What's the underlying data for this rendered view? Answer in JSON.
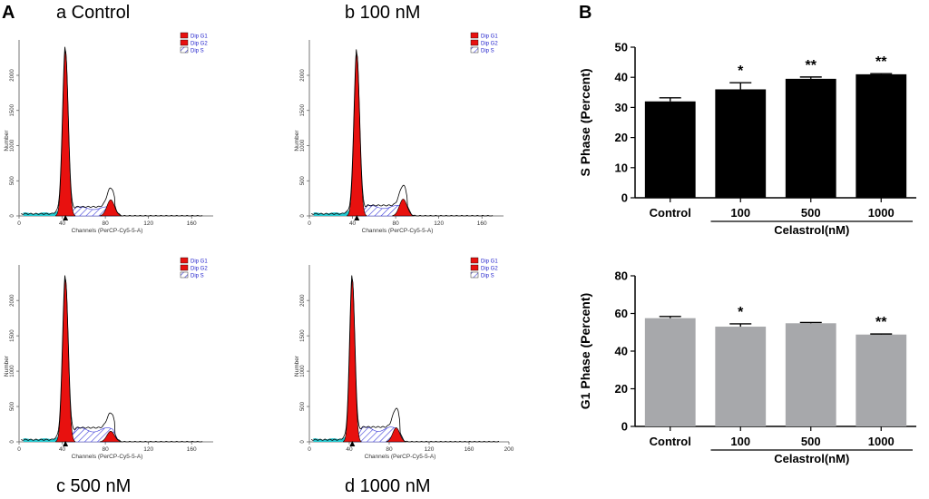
{
  "figure": {
    "panel_a_label": "A",
    "panel_b_label": "B"
  },
  "histogram_common": {
    "x_label": "Channels (PerCP-Cy5-5-A)",
    "y_label": "Number",
    "legend": [
      "Dip G1",
      "Dip G2",
      "Dip S"
    ],
    "colors": {
      "g1": "#e8110f",
      "g2": "#e8110f",
      "s": "#3a3ad8",
      "debris": "#25c8d0",
      "legend_text": "#2222cc"
    }
  },
  "chart_data": [
    {
      "type": "area",
      "panel": "a",
      "title": "a  Control",
      "xlabel": "Channels (PerCP-Cy5-5-A)",
      "ylabel": "Number",
      "x_ticks": [
        0,
        40,
        80,
        120,
        160
      ],
      "y_ticks": [
        0,
        500,
        1000,
        1500,
        2000
      ],
      "xlim": [
        0,
        180
      ],
      "ylim": [
        0,
        2400
      ],
      "legend": [
        "Dip G1",
        "Dip G2",
        "Dip S"
      ],
      "g1_peak": {
        "x": 43,
        "height": 2350
      },
      "g2_peak": {
        "x": 85,
        "height": 230
      },
      "s_phase_plateau": 130,
      "marker_x": 43
    },
    {
      "type": "area",
      "panel": "b",
      "title": "b  100 nM",
      "xlabel": "Channels (PerCP-Cy5-5-A)",
      "ylabel": "Number",
      "x_ticks": [
        0,
        40,
        80,
        120,
        160
      ],
      "y_ticks": [
        0,
        500,
        1000,
        1500,
        2000
      ],
      "xlim": [
        0,
        180
      ],
      "ylim": [
        0,
        2400
      ],
      "legend": [
        "Dip G1",
        "Dip G2",
        "Dip S"
      ],
      "g1_peak": {
        "x": 44,
        "height": 2300
      },
      "g2_peak": {
        "x": 87,
        "height": 240
      },
      "s_phase_plateau": 150,
      "marker_x": 44
    },
    {
      "type": "area",
      "panel": "c",
      "title": "c  500 nM",
      "xlabel": "Channels (PerCP-Cy5-5-A)",
      "ylabel": "Number",
      "x_ticks": [
        0,
        40,
        80,
        120,
        160
      ],
      "y_ticks": [
        0,
        500,
        1000,
        1500,
        2000
      ],
      "xlim": [
        0,
        180
      ],
      "ylim": [
        0,
        2400
      ],
      "legend": [
        "Dip G1",
        "Dip G2",
        "Dip S"
      ],
      "g1_peak": {
        "x": 43,
        "height": 2300
      },
      "g2_peak": {
        "x": 85,
        "height": 150
      },
      "s_phase_plateau": 200,
      "marker_x": 43
    },
    {
      "type": "area",
      "panel": "d",
      "title": "d  1000 nM",
      "xlabel": "Channels (PerCP-Cy5-5-A)",
      "ylabel": "Number",
      "x_ticks": [
        0,
        40,
        80,
        120,
        160,
        200
      ],
      "y_ticks": [
        0,
        500,
        1000,
        1500,
        2000
      ],
      "xlim": [
        0,
        200
      ],
      "ylim": [
        0,
        2400
      ],
      "legend": [
        "Dip G1",
        "Dip G2",
        "Dip S"
      ],
      "g1_peak": {
        "x": 43,
        "height": 2300
      },
      "g2_peak": {
        "x": 87,
        "height": 200
      },
      "s_phase_plateau": 210,
      "marker_x": 43
    },
    {
      "type": "bar",
      "panel": "B-top",
      "categories": [
        "Control",
        "100",
        "500",
        "1000"
      ],
      "values": [
        32,
        36,
        39.5,
        41
      ],
      "errors": [
        1.2,
        2.2,
        0.6,
        0.2
      ],
      "significance": [
        "",
        "*",
        "**",
        "**"
      ],
      "ylabel": "S Phase (Percent)",
      "ylim": [
        0,
        50
      ],
      "y_ticks": [
        0,
        10,
        20,
        30,
        40,
        50
      ],
      "group_label": "Celastrol(nM)",
      "bar_color": "#000000"
    },
    {
      "type": "bar",
      "panel": "B-bottom",
      "categories": [
        "Control",
        "100",
        "500",
        "1000"
      ],
      "values": [
        57.5,
        53,
        54.8,
        48.8
      ],
      "errors": [
        0.9,
        1.5,
        0.4,
        0.3
      ],
      "significance": [
        "",
        "*",
        "",
        "**"
      ],
      "ylabel": "G1 Phase (Percent)",
      "ylim": [
        0,
        80
      ],
      "y_ticks": [
        0,
        20,
        40,
        60,
        80
      ],
      "group_label": "Celastrol(nM)",
      "bar_color": "#a7a8ab"
    }
  ]
}
